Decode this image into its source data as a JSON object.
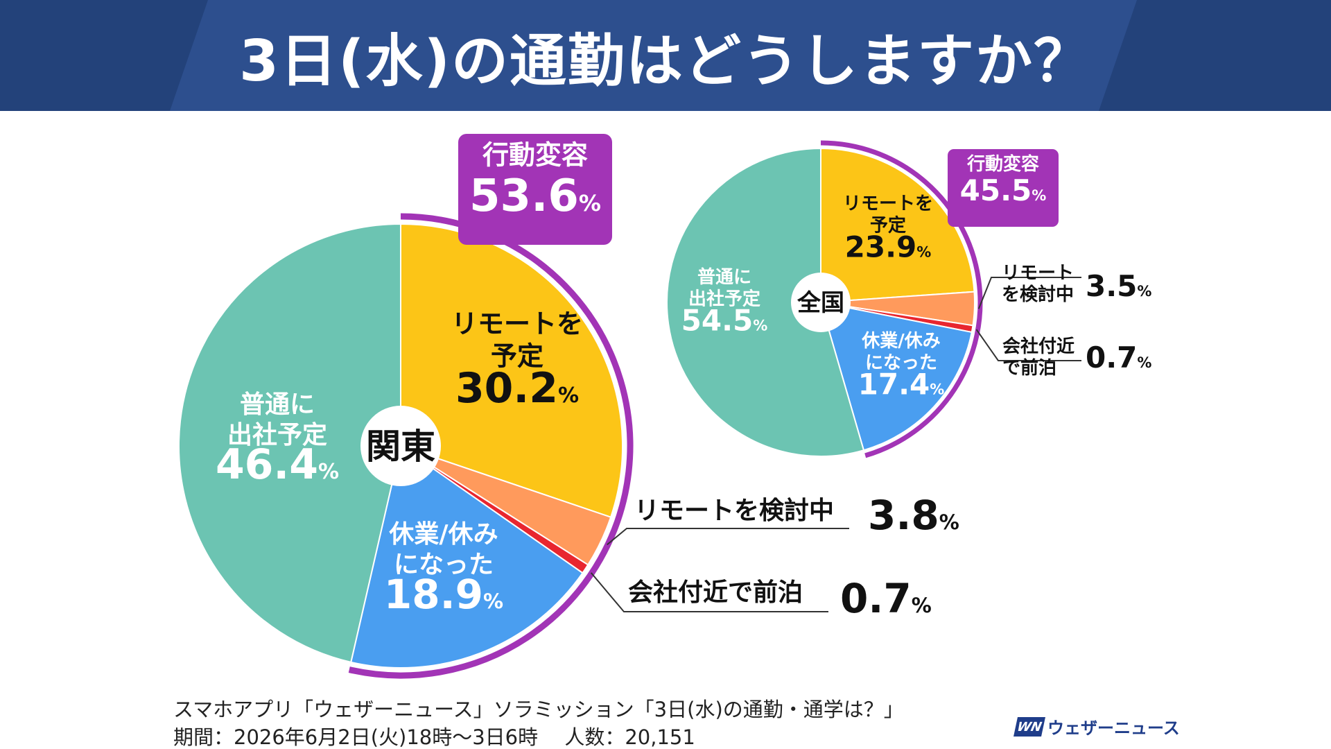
{
  "title": "3日(水)の通勤はどうしますか？",
  "colors": {
    "banner": "#2d4f8e",
    "banner_dark": "#23427a",
    "remote_plan": "#fcc517",
    "remote_consider": "#ff9a5c",
    "hotel": "#e8262f",
    "off": "#4a9ef0",
    "normal": "#6cc4b2",
    "behavior": "#a234b6"
  },
  "chart_data": [
    {
      "type": "pie",
      "center_label": "関東",
      "group_label": "行動変容",
      "group_value": "53.6",
      "group_unit": "%",
      "slices": [
        {
          "label": "リモートを予定",
          "value": 30.2,
          "color": "#fcc517"
        },
        {
          "label": "リモートを検討中",
          "value": 3.8,
          "color": "#ff9a5c"
        },
        {
          "label": "会社付近で前泊",
          "value": 0.7,
          "color": "#e8262f"
        },
        {
          "label": "休業/休みになった",
          "value": 18.9,
          "color": "#4a9ef0"
        },
        {
          "label": "普通に出社予定",
          "value": 46.4,
          "color": "#6cc4b2"
        }
      ]
    },
    {
      "type": "pie",
      "center_label": "全国",
      "group_label": "行動変容",
      "group_value": "45.5",
      "group_unit": "%",
      "slices": [
        {
          "label": "リモートを予定",
          "value": 23.9,
          "color": "#fcc517"
        },
        {
          "label": "リモートを検討中",
          "value": 3.5,
          "color": "#ff9a5c"
        },
        {
          "label": "会社付近で前泊",
          "value": 0.7,
          "color": "#e8262f"
        },
        {
          "label": "休業/休みになった",
          "value": 17.4,
          "color": "#4a9ef0"
        },
        {
          "label": "普通に出社予定",
          "value": 54.5,
          "color": "#6cc4b2"
        }
      ]
    }
  ],
  "footer": {
    "source": "スマホアプリ「ウェザーニュース」ソラミッション「3日(水)の通勤・通学は？」",
    "period": "期間：2026年6月2日(火)18時～3日6時　 人数：20,151"
  },
  "logo": {
    "mark": "WN",
    "text": "ウェザーニュース"
  }
}
